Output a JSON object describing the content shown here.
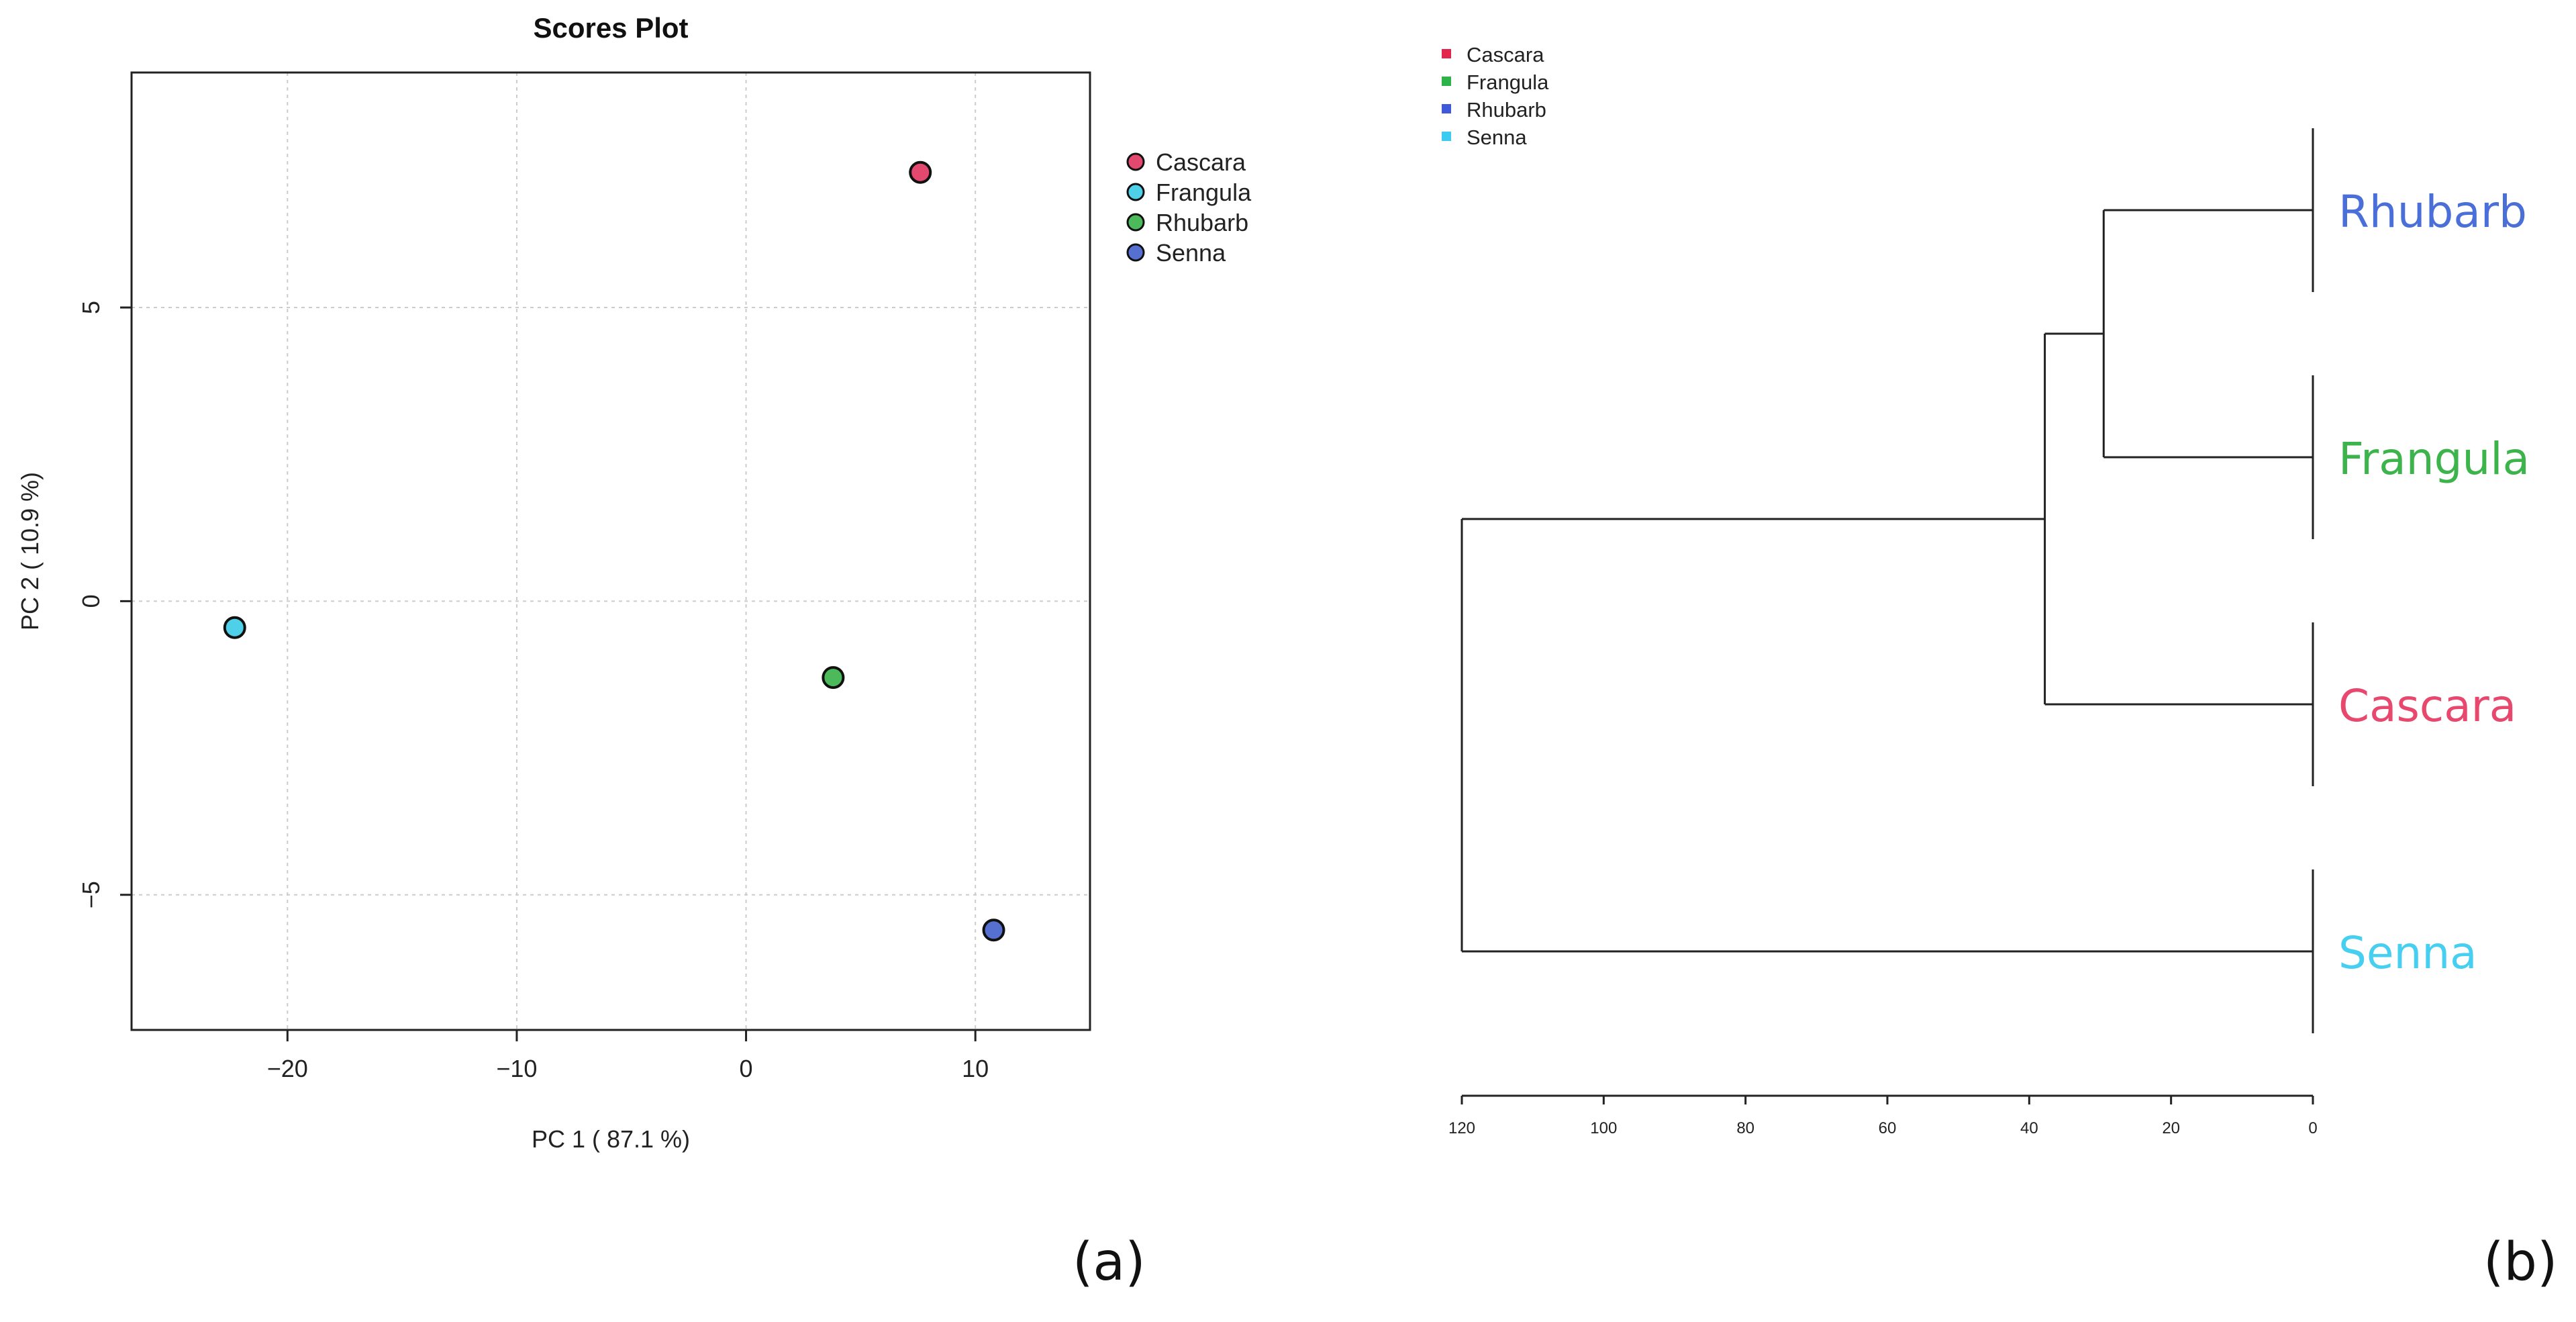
{
  "chart_data": [
    {
      "type": "scatter",
      "title": "Scores Plot",
      "xlabel": "PC 1 ( 87.1 %)",
      "ylabel": "PC 2 ( 10.9 %)",
      "xlim": [
        -26.8,
        15
      ],
      "ylim": [
        -7.3,
        9.0
      ],
      "xticks": [
        -20,
        -10,
        0,
        10
      ],
      "xtick_labels": [
        "−20",
        "−10",
        "0",
        "10"
      ],
      "yticks": [
        -5,
        0,
        5
      ],
      "ytick_labels": [
        "−5",
        "0",
        "5"
      ],
      "grid": true,
      "legend_position": "right",
      "points": [
        {
          "label": "Cascara",
          "x": 7.6,
          "y": 7.3,
          "color": "#e3496e"
        },
        {
          "label": "Frangula",
          "x": -22.3,
          "y": -0.45,
          "color": "#4dd0e8"
        },
        {
          "label": "Rhubarb",
          "x": 3.8,
          "y": -1.3,
          "color": "#4cba5a"
        },
        {
          "label": "Senna",
          "x": 10.8,
          "y": -5.6,
          "color": "#5570d0"
        }
      ],
      "legend": [
        {
          "label": "Cascara",
          "color": "#e3496e"
        },
        {
          "label": "Frangula",
          "color": "#4dd0e8"
        },
        {
          "label": "Rhubarb",
          "color": "#4cba5a"
        },
        {
          "label": "Senna",
          "color": "#5570d0"
        }
      ],
      "panel_label": "(a)"
    },
    {
      "type": "dendrogram",
      "x_axis_ticks": [
        120,
        100,
        80,
        60,
        40,
        20,
        0
      ],
      "xlim": [
        120,
        0
      ],
      "leaves": [
        {
          "label": "Rhubarb",
          "color": "#4a6fd8"
        },
        {
          "label": "Frangula",
          "color": "#3cb44b"
        },
        {
          "label": "Cascara",
          "color": "#e8486e"
        },
        {
          "label": "Senna",
          "color": "#46cff0"
        }
      ],
      "merges": [
        {
          "left": "Rhubarb",
          "right": "Frangula",
          "height": 29.5
        },
        {
          "left": "Rhubarb+Frangula",
          "right": "Cascara",
          "height": 37.8
        },
        {
          "left": "Rhubarb+Frangula+Cascara",
          "right": "Senna",
          "height": 120
        }
      ],
      "legend": [
        {
          "label": "Cascara",
          "color": "#e3244f"
        },
        {
          "label": "Frangula",
          "color": "#2db34a"
        },
        {
          "label": "Rhubarb",
          "color": "#3e5ad8"
        },
        {
          "label": "Senna",
          "color": "#3ccbf0"
        }
      ],
      "panel_label": "(b)"
    }
  ]
}
